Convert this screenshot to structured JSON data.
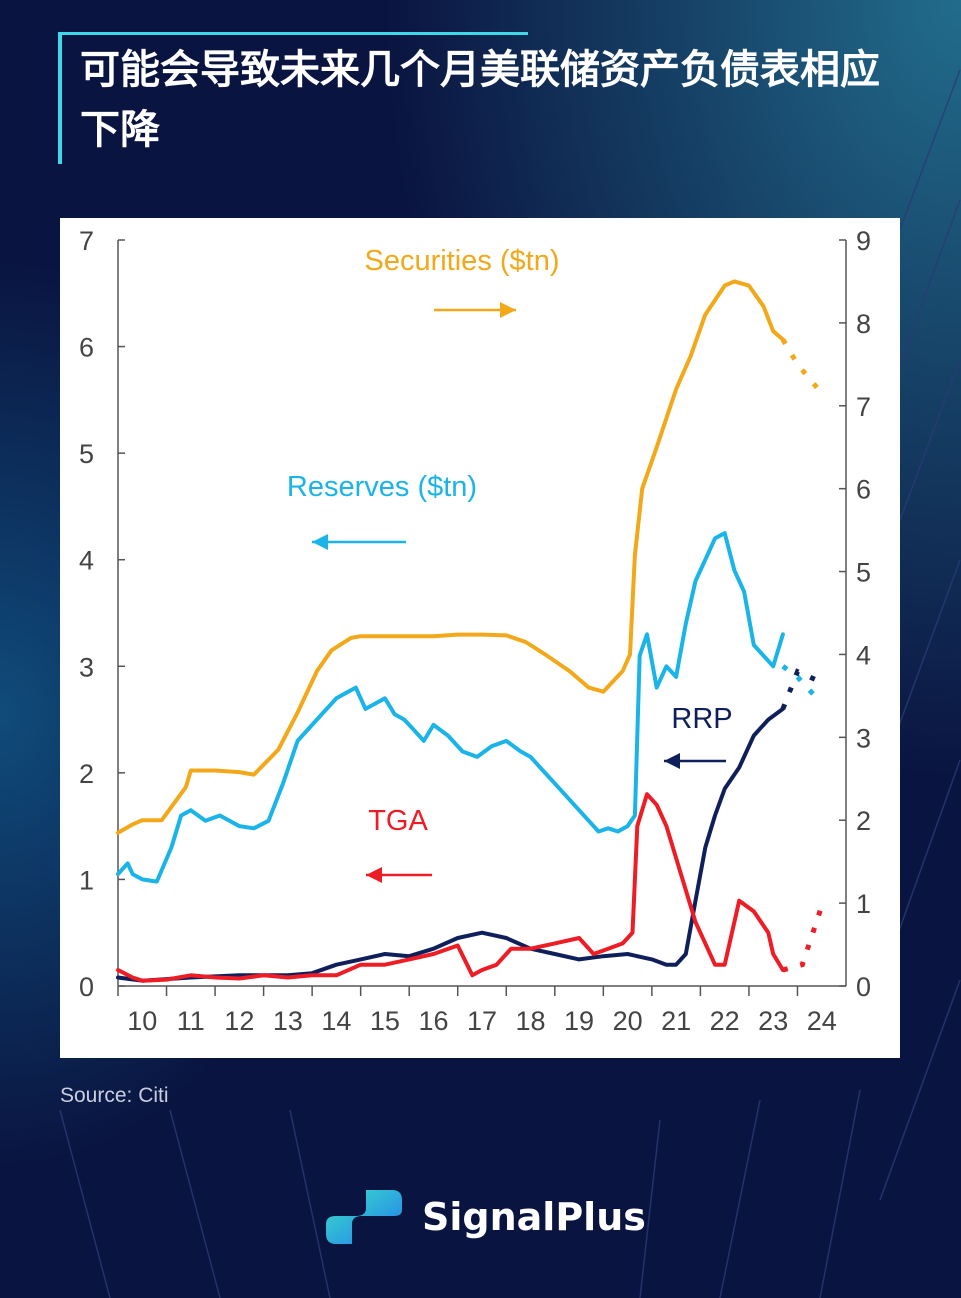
{
  "title": "可能会导致未来几个月美联储资产负债表相应下降",
  "source": "Source: Citi",
  "brand": "SignalPlus",
  "colors": {
    "securities": "#f2a818",
    "reserves": "#1ab4e8",
    "rrp": "#0f1f5c",
    "tga": "#ee1c25",
    "background": "#0a1440",
    "accent": "#3fd8e8"
  },
  "chart_data": {
    "type": "line",
    "x_ticks": [
      "10",
      "11",
      "12",
      "13",
      "14",
      "15",
      "16",
      "17",
      "18",
      "19",
      "20",
      "21",
      "22",
      "23",
      "24"
    ],
    "xlim": [
      2009.5,
      2024.5
    ],
    "left_axis": {
      "ticks": [
        "0",
        "1",
        "2",
        "3",
        "4",
        "5",
        "6",
        "7"
      ],
      "ylim": [
        0,
        7
      ]
    },
    "right_axis": {
      "ticks": [
        "0",
        "1",
        "2",
        "3",
        "4",
        "5",
        "6",
        "7",
        "8",
        "9"
      ],
      "ylim": [
        0,
        9
      ]
    },
    "grid": false,
    "labels": {
      "securities": "Securities ($tn)",
      "reserves": "Reserves ($tn)",
      "rrp": "RRP",
      "tga": "TGA"
    },
    "series": [
      {
        "name": "Securities ($tn)",
        "axis": "right",
        "color_key": "securities",
        "x": [
          2009.5,
          2009.8,
          2010.0,
          2010.4,
          2010.9,
          2011.0,
          2011.5,
          2012.0,
          2012.3,
          2012.8,
          2013.2,
          2013.6,
          2013.9,
          2014.3,
          2014.5,
          2015.0,
          2015.5,
          2016.0,
          2016.5,
          2017.0,
          2017.5,
          2017.9,
          2018.3,
          2018.8,
          2019.2,
          2019.5,
          2019.9,
          2020.05,
          2020.15,
          2020.3,
          2020.6,
          2021.0,
          2021.3,
          2021.6,
          2022.0,
          2022.2,
          2022.5,
          2022.8,
          2023.0,
          2023.2
        ],
        "values": [
          1.85,
          1.95,
          2.0,
          2.0,
          2.4,
          2.6,
          2.6,
          2.58,
          2.55,
          2.85,
          3.3,
          3.8,
          4.05,
          4.2,
          4.22,
          4.22,
          4.22,
          4.22,
          4.24,
          4.24,
          4.23,
          4.15,
          4.0,
          3.8,
          3.6,
          3.55,
          3.8,
          4.0,
          5.2,
          6.0,
          6.5,
          7.2,
          7.6,
          8.1,
          8.45,
          8.5,
          8.45,
          8.2,
          7.9,
          7.8
        ],
        "projection": {
          "x": [
            2023.2,
            2023.5,
            2024.0
          ],
          "values": [
            7.8,
            7.5,
            7.15
          ]
        }
      },
      {
        "name": "Reserves ($tn)",
        "axis": "left",
        "color_key": "reserves",
        "x": [
          2009.5,
          2009.7,
          2009.8,
          2010.0,
          2010.3,
          2010.6,
          2010.8,
          2011.0,
          2011.3,
          2011.6,
          2012.0,
          2012.3,
          2012.6,
          2012.9,
          2013.2,
          2013.5,
          2013.8,
          2014.0,
          2014.2,
          2014.4,
          2014.6,
          2014.8,
          2015.0,
          2015.2,
          2015.4,
          2015.6,
          2015.8,
          2016.0,
          2016.3,
          2016.6,
          2016.9,
          2017.2,
          2017.5,
          2017.8,
          2018.0,
          2018.3,
          2018.6,
          2018.9,
          2019.2,
          2019.4,
          2019.6,
          2019.8,
          2020.0,
          2020.15,
          2020.25,
          2020.4,
          2020.6,
          2020.8,
          2021.0,
          2021.2,
          2021.4,
          2021.6,
          2021.8,
          2022.0,
          2022.2,
          2022.4,
          2022.6,
          2022.8,
          2023.0,
          2023.2
        ],
        "values": [
          1.05,
          1.15,
          1.05,
          1.0,
          0.98,
          1.3,
          1.6,
          1.65,
          1.55,
          1.6,
          1.5,
          1.48,
          1.55,
          1.9,
          2.3,
          2.45,
          2.6,
          2.7,
          2.75,
          2.8,
          2.6,
          2.65,
          2.7,
          2.55,
          2.5,
          2.4,
          2.3,
          2.45,
          2.35,
          2.2,
          2.15,
          2.25,
          2.3,
          2.2,
          2.15,
          2.0,
          1.85,
          1.7,
          1.55,
          1.45,
          1.48,
          1.45,
          1.5,
          1.6,
          3.1,
          3.3,
          2.8,
          3.0,
          2.9,
          3.4,
          3.8,
          4.0,
          4.2,
          4.25,
          3.9,
          3.7,
          3.2,
          3.1,
          3.0,
          3.3
        ],
        "projection": {
          "x": [
            2023.2,
            2023.5,
            2024.0
          ],
          "values": [
            3.0,
            2.9,
            2.65
          ]
        }
      },
      {
        "name": "RRP",
        "axis": "left",
        "color_key": "rrp",
        "x": [
          2009.5,
          2010.0,
          2011.0,
          2012.0,
          2013.0,
          2013.5,
          2014.0,
          2014.5,
          2015.0,
          2015.5,
          2016.0,
          2016.5,
          2017.0,
          2017.5,
          2018.0,
          2018.5,
          2019.0,
          2019.5,
          2020.0,
          2020.5,
          2020.8,
          2021.0,
          2021.2,
          2021.4,
          2021.6,
          2021.8,
          2022.0,
          2022.3,
          2022.6,
          2022.9,
          2023.2
        ],
        "values": [
          0.08,
          0.05,
          0.08,
          0.1,
          0.1,
          0.12,
          0.2,
          0.25,
          0.3,
          0.28,
          0.35,
          0.45,
          0.5,
          0.45,
          0.35,
          0.3,
          0.25,
          0.28,
          0.3,
          0.25,
          0.2,
          0.2,
          0.3,
          0.8,
          1.3,
          1.6,
          1.85,
          2.05,
          2.35,
          2.5,
          2.6
        ],
        "projection": {
          "x": [
            2023.2,
            2023.5,
            2024.0
          ],
          "values": [
            2.6,
            2.95,
            2.85
          ]
        }
      },
      {
        "name": "TGA",
        "axis": "left",
        "color_key": "tga",
        "x": [
          2009.5,
          2009.8,
          2010.0,
          2010.5,
          2011.0,
          2011.5,
          2012.0,
          2012.5,
          2013.0,
          2013.5,
          2014.0,
          2014.5,
          2015.0,
          2015.5,
          2016.0,
          2016.5,
          2016.8,
          2017.0,
          2017.3,
          2017.6,
          2018.0,
          2018.5,
          2019.0,
          2019.3,
          2019.6,
          2019.9,
          2020.1,
          2020.2,
          2020.4,
          2020.6,
          2020.8,
          2021.0,
          2021.2,
          2021.4,
          2021.6,
          2021.8,
          2022.0,
          2022.3,
          2022.6,
          2022.9,
          2023.0,
          2023.2
        ],
        "values": [
          0.15,
          0.08,
          0.05,
          0.06,
          0.1,
          0.08,
          0.07,
          0.1,
          0.08,
          0.1,
          0.1,
          0.2,
          0.2,
          0.25,
          0.3,
          0.38,
          0.1,
          0.15,
          0.2,
          0.35,
          0.35,
          0.4,
          0.45,
          0.3,
          0.35,
          0.4,
          0.5,
          1.5,
          1.8,
          1.7,
          1.5,
          1.2,
          0.9,
          0.6,
          0.4,
          0.2,
          0.2,
          0.8,
          0.7,
          0.5,
          0.3,
          0.15
        ],
        "projection": {
          "x": [
            2023.2,
            2023.6,
            2024.0
          ],
          "values": [
            0.15,
            0.2,
            0.75
          ]
        }
      }
    ]
  }
}
